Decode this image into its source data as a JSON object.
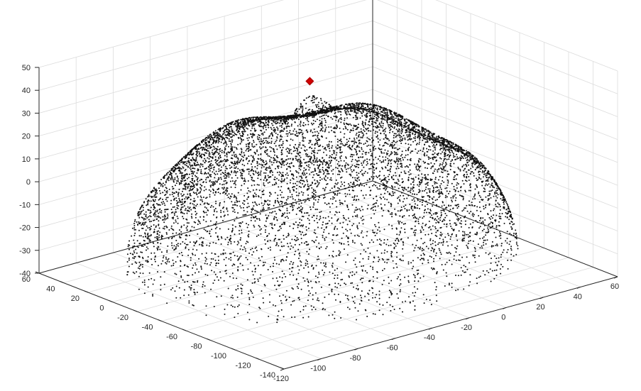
{
  "chart_data": {
    "type": "scatter",
    "variant": "3d-point-cloud",
    "title": "",
    "xlabel": "",
    "ylabel": "",
    "zlabel": "",
    "xlim": [
      -120,
      60
    ],
    "ylim": [
      -140,
      60
    ],
    "zlim": [
      -40,
      50
    ],
    "x_ticks": [
      -120,
      -100,
      -80,
      -60,
      -40,
      -20,
      0,
      20,
      40,
      60
    ],
    "y_ticks": [
      -140,
      -120,
      -100,
      -80,
      -60,
      -40,
      -20,
      0,
      20,
      40,
      60
    ],
    "z_ticks": [
      -40,
      -30,
      -20,
      -10,
      0,
      10,
      20,
      30,
      40,
      50
    ],
    "x_tick_labels": [
      "-120",
      "-100",
      "-80",
      "-60",
      "-40",
      "-20",
      "0",
      "20",
      "40",
      "60"
    ],
    "y_tick_labels": [
      "-140",
      "-120",
      "-100",
      "-80",
      "-60",
      "-40",
      "-20",
      "0",
      "20",
      "40",
      "60"
    ],
    "z_tick_labels": [
      "-40",
      "-30",
      "-20",
      "-10",
      "0",
      "10",
      "20",
      "30",
      "40",
      "50"
    ],
    "grid": true,
    "box": true,
    "point_color": "#111111",
    "highlight_color": "#d40000",
    "highlight_point": {
      "x": -40,
      "y": -40,
      "z": 47
    },
    "surface": {
      "description": "dense black point cloud of a dome-shaped scanned surface with a tall peak near the center-back",
      "x_range": [
        -120,
        60
      ],
      "y_range": [
        -130,
        60
      ],
      "base_height": -35,
      "peak": {
        "x": -40,
        "y": -40,
        "z": 47
      }
    }
  }
}
